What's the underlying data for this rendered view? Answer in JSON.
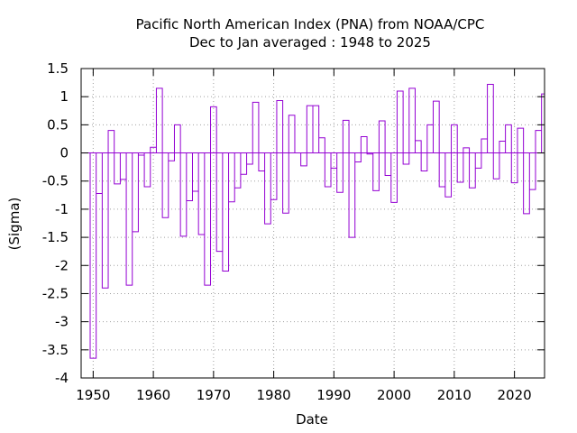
{
  "chart_data": {
    "type": "bar",
    "style": "step-outline",
    "title": "Pacific North American Index (PNA) from NOAA/CPC",
    "subtitle": "Dec to Jan averaged : 1948 to 2025",
    "xlabel": "Date",
    "ylabel": "(Sigma)",
    "xlim": [
      1948,
      2025
    ],
    "ylim": [
      -4,
      1.5
    ],
    "xticks": [
      1950,
      1960,
      1970,
      1980,
      1990,
      2000,
      2010,
      2020
    ],
    "yticks": [
      1.5,
      1,
      0.5,
      0,
      -0.5,
      -1,
      -1.5,
      -2,
      -2.5,
      -3,
      -3.5,
      -4
    ],
    "grid": true,
    "legend": "none",
    "color": "#9400d3",
    "x": [
      1949,
      1950,
      1951,
      1952,
      1953,
      1954,
      1955,
      1956,
      1957,
      1958,
      1959,
      1960,
      1961,
      1962,
      1963,
      1964,
      1965,
      1966,
      1967,
      1968,
      1969,
      1970,
      1971,
      1972,
      1973,
      1974,
      1975,
      1976,
      1977,
      1978,
      1979,
      1980,
      1981,
      1982,
      1983,
      1984,
      1985,
      1986,
      1987,
      1988,
      1989,
      1990,
      1991,
      1992,
      1993,
      1994,
      1995,
      1996,
      1997,
      1998,
      1999,
      2000,
      2001,
      2002,
      2003,
      2004,
      2005,
      2006,
      2007,
      2008,
      2009,
      2010,
      2011,
      2012,
      2013,
      2014,
      2015,
      2016,
      2017,
      2018,
      2019,
      2020,
      2021,
      2022,
      2023,
      2024,
      2025
    ],
    "values": [
      0,
      -3.65,
      -0.72,
      -2.4,
      0.4,
      -0.55,
      -0.47,
      -2.35,
      -1.4,
      -0.04,
      -0.6,
      0.1,
      1.15,
      -1.15,
      -0.14,
      0.5,
      -1.48,
      -0.85,
      -0.68,
      -1.45,
      -2.35,
      0.82,
      -1.75,
      -2.1,
      -0.87,
      -0.62,
      -0.38,
      -0.2,
      0.9,
      -0.32,
      -1.26,
      -0.83,
      0.93,
      -1.07,
      0.67,
      0,
      -0.23,
      0.84,
      0.84,
      0.27,
      -0.6,
      -0.27,
      -0.7,
      0.58,
      -1.5,
      -0.16,
      0.29,
      -0.02,
      -0.67,
      0.57,
      -0.4,
      -0.88,
      1.1,
      -0.2,
      1.15,
      0.22,
      -0.32,
      0.5,
      0.92,
      -0.6,
      -0.78,
      0.5,
      -0.52,
      0.09,
      -0.62,
      -0.27,
      0.25,
      1.22,
      -0.46,
      0.21,
      0.5,
      -0.53,
      0.44,
      -1.08,
      -0.65,
      0.4,
      1.05
    ]
  }
}
